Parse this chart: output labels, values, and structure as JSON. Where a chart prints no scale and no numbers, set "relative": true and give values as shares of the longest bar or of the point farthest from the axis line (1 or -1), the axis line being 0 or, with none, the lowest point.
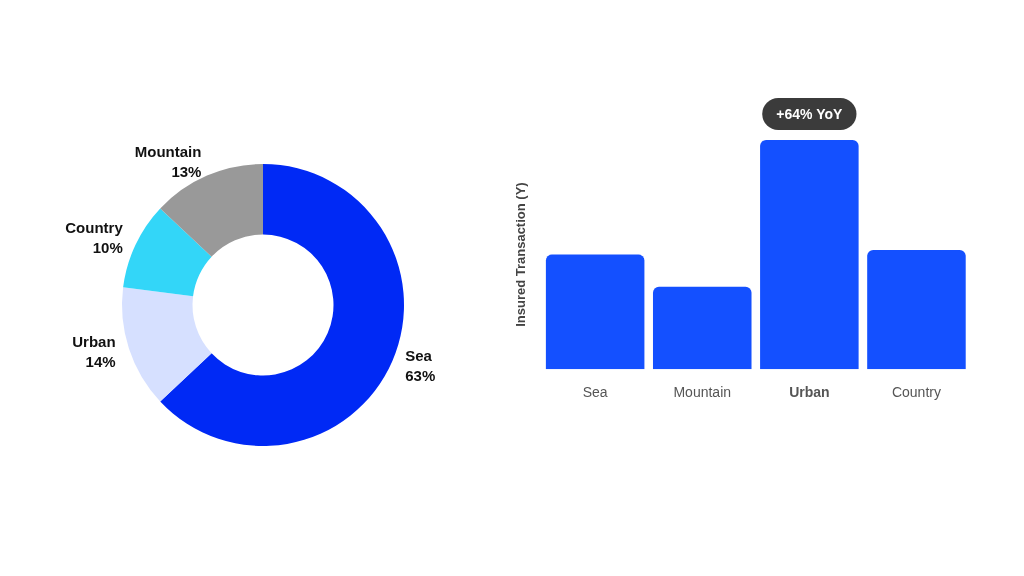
{
  "chart_data": [
    {
      "type": "donut",
      "categories": [
        "Sea",
        "Urban",
        "Country",
        "Mountain"
      ],
      "values": [
        63,
        14,
        10,
        13
      ],
      "value_labels": [
        "63%",
        "14%",
        "10%",
        "13%"
      ],
      "colors": [
        "#0029f5",
        "#d6e0ff",
        "#33d6f8",
        "#999999"
      ],
      "legend": false
    },
    {
      "type": "bar",
      "relative": true,
      "ylabel": "Insured Transaction (Y)",
      "categories": [
        "Sea",
        "Mountain",
        "Urban",
        "Country"
      ],
      "values": [
        0.5,
        0.36,
        1,
        0.52
      ],
      "color": "#1450ff",
      "annotations": [
        {
          "text": "+64% YoY",
          "x": "Urban",
          "y": 1
        }
      ],
      "legend": false,
      "grid": false
    }
  ]
}
